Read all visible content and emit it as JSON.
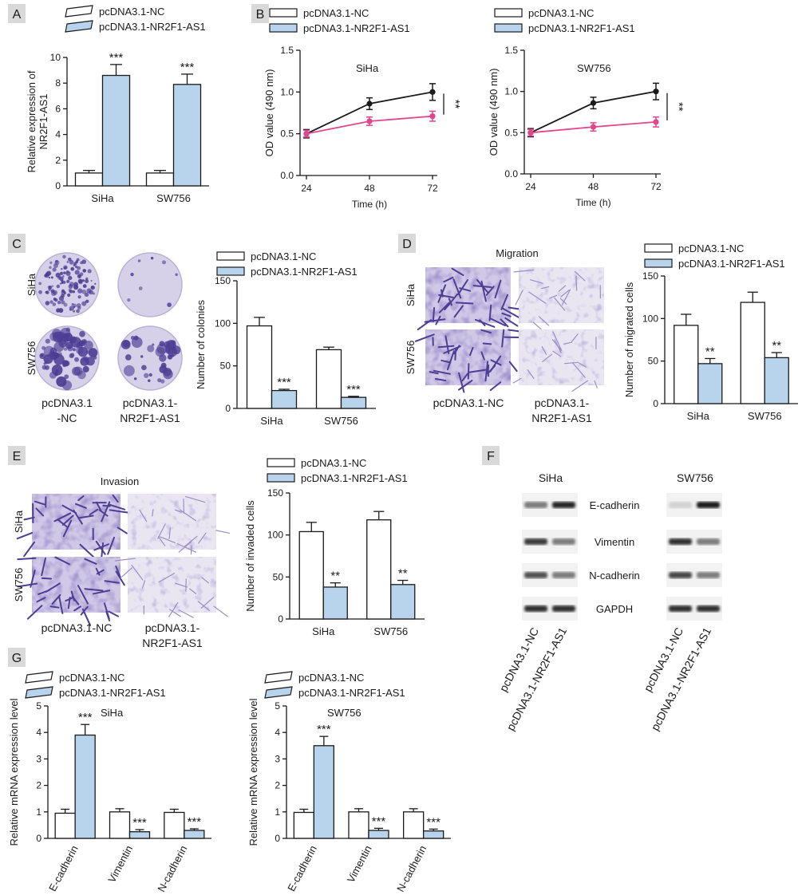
{
  "colors": {
    "nc": "#ffffff",
    "oe": "#b8d3ec",
    "line_nc": "#1a1a1a",
    "line_oe": "#e0468c",
    "stain_dark": "#4d3d94",
    "stain_light": "#9b8dc6",
    "tag_bg": "#d9d9d9"
  },
  "panel_letters": [
    "A",
    "B",
    "C",
    "D",
    "E",
    "F",
    "G"
  ],
  "legend": {
    "nc": "pcDNA3.1-NC",
    "oe": "pcDNA3.1-NR2F1-AS1"
  },
  "cell_lines": [
    "SiHa",
    "SW756"
  ],
  "panel_c": {
    "row_labels": [
      "SiHa",
      "SW756"
    ],
    "col_label_nc": [
      "pcDNA3.1",
      "-NC"
    ],
    "col_label_oe": [
      "pcDNA3.1-",
      "NR2F1-AS1"
    ]
  },
  "panel_d": {
    "title": "Migration",
    "row_labels": [
      "SiHa",
      "SW756"
    ],
    "col_label_nc": [
      "pcDNA3.1-NC"
    ],
    "col_label_oe": [
      "pcDNA3.1-",
      "NR2F1-AS1"
    ]
  },
  "panel_e": {
    "title": "Invasion",
    "row_labels": [
      "SiHa",
      "SW756"
    ],
    "col_label_nc": [
      "pcDNA3.1-NC"
    ],
    "col_label_oe": [
      "pcDNA3.1-",
      "NR2F1-AS1"
    ]
  },
  "panel_f": {
    "groups": [
      "SiHa",
      "SW756"
    ],
    "proteins": [
      "E-cadherin",
      "Vimentin",
      "N-cadherin",
      "GAPDH"
    ],
    "lanes": [
      "pcDNA3.1-NC",
      "pcDNA3.1-NR2F1-AS1"
    ],
    "band_intensity": {
      "SiHa": [
        [
          0.55,
          0.95
        ],
        [
          0.85,
          0.55
        ],
        [
          0.75,
          0.55
        ],
        [
          0.9,
          0.9
        ]
      ],
      "SW756": [
        [
          0.15,
          1.0
        ],
        [
          0.9,
          0.55
        ],
        [
          0.8,
          0.55
        ],
        [
          0.9,
          0.9
        ]
      ]
    }
  },
  "chart_data": [
    {
      "id": "A",
      "type": "bar",
      "ylabel": [
        "Relative expression of",
        "NR2F1-AS1"
      ],
      "categories": [
        "SiHa",
        "SW756"
      ],
      "ylim": [
        0,
        10
      ],
      "yticks": [
        0,
        2,
        4,
        6,
        8,
        10
      ],
      "series": [
        {
          "name": "pcDNA3.1-NC",
          "values": [
            1.0,
            1.0
          ],
          "errors": [
            0.2,
            0.2
          ]
        },
        {
          "name": "pcDNA3.1-NR2F1-AS1",
          "values": [
            8.6,
            7.9
          ],
          "errors": [
            0.85,
            0.8
          ]
        }
      ],
      "significance": [
        "***",
        "***"
      ]
    },
    {
      "id": "B1",
      "type": "line",
      "title": "SiHa",
      "xlabel": "Time (h)",
      "ylabel": "OD value (490 nm)",
      "x": [
        24,
        48,
        72
      ],
      "ylim": [
        0,
        1.5
      ],
      "yticks": [
        0.0,
        0.5,
        1.0,
        1.5
      ],
      "series": [
        {
          "name": "pcDNA3.1-NC",
          "values": [
            0.5,
            0.86,
            1.0
          ],
          "errors": [
            0.05,
            0.07,
            0.1
          ]
        },
        {
          "name": "pcDNA3.1-NR2F1-AS1",
          "values": [
            0.5,
            0.65,
            0.71
          ],
          "errors": [
            0.04,
            0.05,
            0.06
          ]
        }
      ],
      "significance": "**"
    },
    {
      "id": "B2",
      "type": "line",
      "title": "SW756",
      "xlabel": "Time (h)",
      "ylabel": "OD value (490 nm)",
      "x": [
        24,
        48,
        72
      ],
      "ylim": [
        0,
        1.5
      ],
      "yticks": [
        0.0,
        0.5,
        1.0,
        1.5
      ],
      "series": [
        {
          "name": "pcDNA3.1-NC",
          "values": [
            0.5,
            0.86,
            1.0
          ],
          "errors": [
            0.05,
            0.07,
            0.1
          ]
        },
        {
          "name": "pcDNA3.1-NR2F1-AS1",
          "values": [
            0.5,
            0.57,
            0.63
          ],
          "errors": [
            0.04,
            0.05,
            0.06
          ]
        }
      ],
      "significance": "**"
    },
    {
      "id": "C",
      "type": "bar",
      "ylabel": [
        "Number of colonies"
      ],
      "categories": [
        "SiHa",
        "SW756"
      ],
      "ylim": [
        0,
        150
      ],
      "yticks": [
        0,
        50,
        100,
        150
      ],
      "series": [
        {
          "name": "pcDNA3.1-NC",
          "values": [
            97,
            69
          ],
          "errors": [
            10,
            3
          ]
        },
        {
          "name": "pcDNA3.1-NR2F1-AS1",
          "values": [
            21,
            13
          ],
          "errors": [
            1.5,
            1.2
          ]
        }
      ],
      "significance": [
        "***",
        "***"
      ]
    },
    {
      "id": "D",
      "type": "bar",
      "ylabel": [
        "Number of migrated cells"
      ],
      "categories": [
        "SiHa",
        "SW756"
      ],
      "ylim": [
        0,
        150
      ],
      "yticks": [
        0,
        50,
        100,
        150
      ],
      "series": [
        {
          "name": "pcDNA3.1-NC",
          "values": [
            92,
            119
          ],
          "errors": [
            13,
            12
          ]
        },
        {
          "name": "pcDNA3.1-NR2F1-AS1",
          "values": [
            47,
            54
          ],
          "errors": [
            6,
            6
          ]
        }
      ],
      "significance": [
        "**",
        "**"
      ]
    },
    {
      "id": "E",
      "type": "bar",
      "ylabel": [
        "Number of invaded cells"
      ],
      "categories": [
        "SiHa",
        "SW756"
      ],
      "ylim": [
        0,
        150
      ],
      "yticks": [
        0,
        50,
        100,
        150
      ],
      "series": [
        {
          "name": "pcDNA3.1-NC",
          "values": [
            104,
            118
          ],
          "errors": [
            11,
            10
          ]
        },
        {
          "name": "pcDNA3.1-NR2F1-AS1",
          "values": [
            38,
            41
          ],
          "errors": [
            5,
            5
          ]
        }
      ],
      "significance": [
        "**",
        "**"
      ]
    },
    {
      "id": "G1",
      "type": "bar",
      "title": "SiHa",
      "ylabel": [
        "Relative mRNA expression level"
      ],
      "categories": [
        "E-cadherin",
        "Vimentin",
        "N-cadherin"
      ],
      "ylim": [
        0,
        5
      ],
      "yticks": [
        0,
        1,
        2,
        3,
        4,
        5
      ],
      "series": [
        {
          "name": "pcDNA3.1-NC",
          "values": [
            0.95,
            1.0,
            0.98
          ],
          "errors": [
            0.15,
            0.12,
            0.12
          ]
        },
        {
          "name": "pcDNA3.1-NR2F1-AS1",
          "values": [
            3.9,
            0.25,
            0.3
          ],
          "errors": [
            0.4,
            0.08,
            0.06
          ]
        }
      ],
      "significance": [
        "***",
        "***",
        "***"
      ]
    },
    {
      "id": "G2",
      "type": "bar",
      "title": "SW756",
      "ylabel": [
        "Relative mRNA expression level"
      ],
      "categories": [
        "E-cadherin",
        "Vimentin",
        "N-cadherin"
      ],
      "ylim": [
        0,
        5
      ],
      "yticks": [
        0,
        1,
        2,
        3,
        4,
        5
      ],
      "series": [
        {
          "name": "pcDNA3.1-NC",
          "values": [
            0.98,
            1.0,
            1.0
          ],
          "errors": [
            0.12,
            0.12,
            0.12
          ]
        },
        {
          "name": "pcDNA3.1-NR2F1-AS1",
          "values": [
            3.5,
            0.3,
            0.28
          ],
          "errors": [
            0.35,
            0.08,
            0.07
          ]
        }
      ],
      "significance": [
        "***",
        "***",
        "***"
      ]
    }
  ]
}
